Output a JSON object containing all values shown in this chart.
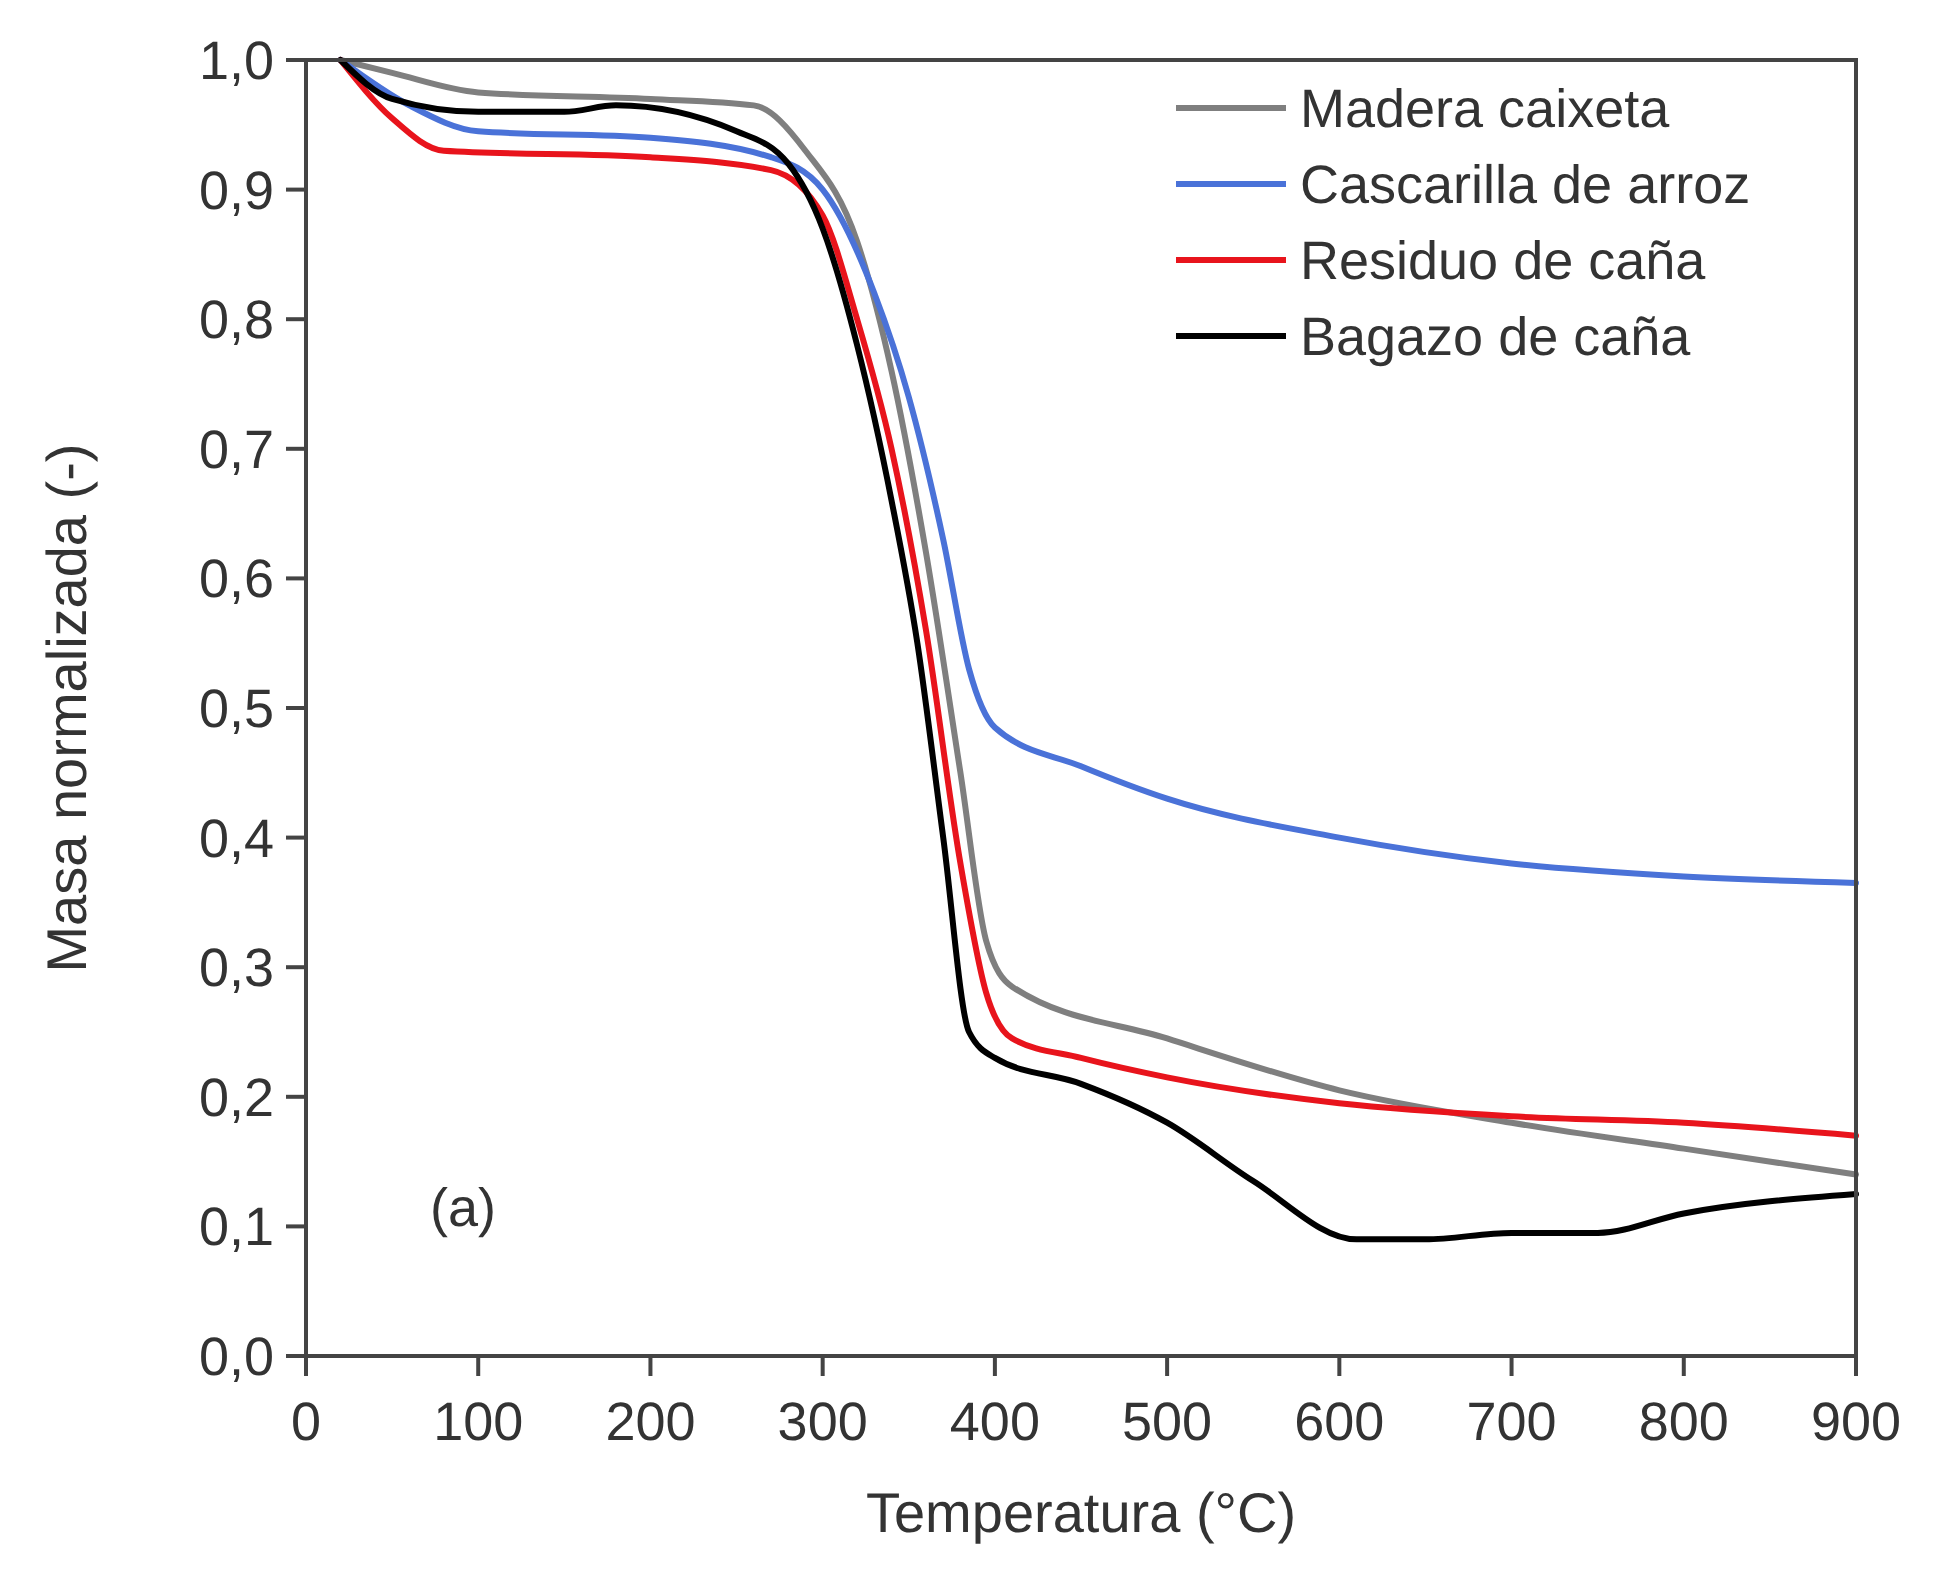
{
  "chart_data": {
    "type": "line",
    "xlabel": "Temperatura (°C)",
    "ylabel": "Masa normalizada (-)",
    "xlim": [
      0,
      900
    ],
    "xticks": [
      0,
      100,
      200,
      300,
      400,
      500,
      600,
      700,
      800,
      900
    ],
    "ylim": [
      0,
      1
    ],
    "yticks": [
      {
        "value": 0,
        "label": "0,0"
      },
      {
        "value": 0.1,
        "label": "0,1"
      },
      {
        "value": 0.2,
        "label": "0,2"
      },
      {
        "value": 0.3,
        "label": "0,3"
      },
      {
        "value": 0.4,
        "label": "0,4"
      },
      {
        "value": 0.5,
        "label": "0,5"
      },
      {
        "value": 0.6,
        "label": "0,6"
      },
      {
        "value": 0.7,
        "label": "0,7"
      },
      {
        "value": 0.8,
        "label": "0,8"
      },
      {
        "value": 0.9,
        "label": "0,9"
      },
      {
        "value": 1,
        "label": "1,0"
      }
    ],
    "legend": "top right",
    "grid": false,
    "annotations": [
      "(a)"
    ],
    "series": [
      {
        "name": "Madera caixeta",
        "color": "#7f7f7f",
        "x": [
          20,
          50,
          100,
          200,
          260,
          290,
          320,
          340,
          360,
          380,
          395,
          410,
          500,
          600,
          700,
          800,
          900
        ],
        "values": [
          1.0,
          0.99,
          0.975,
          0.97,
          0.965,
          0.93,
          0.86,
          0.76,
          0.62,
          0.45,
          0.32,
          0.285,
          0.245,
          0.205,
          0.18,
          0.16,
          0.14
        ]
      },
      {
        "name": "Cascarilla de arroz",
        "color": "#4a72d8",
        "x": [
          20,
          60,
          100,
          200,
          270,
          300,
          330,
          350,
          370,
          385,
          400,
          450,
          500,
          600,
          700,
          800,
          900
        ],
        "values": [
          1.0,
          0.965,
          0.945,
          0.94,
          0.925,
          0.9,
          0.82,
          0.74,
          0.63,
          0.53,
          0.485,
          0.455,
          0.43,
          0.4,
          0.38,
          0.37,
          0.365
        ]
      },
      {
        "name": "Residuo de caña",
        "color": "#e8141c",
        "x": [
          20,
          50,
          80,
          200,
          270,
          300,
          320,
          340,
          360,
          380,
          395,
          410,
          450,
          500,
          600,
          700,
          800,
          900
        ],
        "values": [
          1.0,
          0.955,
          0.93,
          0.925,
          0.915,
          0.88,
          0.8,
          0.7,
          0.56,
          0.38,
          0.28,
          0.245,
          0.23,
          0.215,
          0.195,
          0.185,
          0.18,
          0.17
        ]
      },
      {
        "name": "Bagazo de caña",
        "color": "#000000",
        "x": [
          20,
          50,
          100,
          150,
          180,
          250,
          280,
          300,
          320,
          340,
          355,
          370,
          385,
          400,
          450,
          500,
          550,
          610,
          650,
          700,
          750,
          800,
          900
        ],
        "values": [
          1.0,
          0.97,
          0.96,
          0.96,
          0.965,
          0.945,
          0.92,
          0.87,
          0.78,
          0.66,
          0.55,
          0.4,
          0.25,
          0.23,
          0.21,
          0.18,
          0.135,
          0.09,
          0.09,
          0.095,
          0.095,
          0.11,
          0.125
        ]
      }
    ]
  }
}
